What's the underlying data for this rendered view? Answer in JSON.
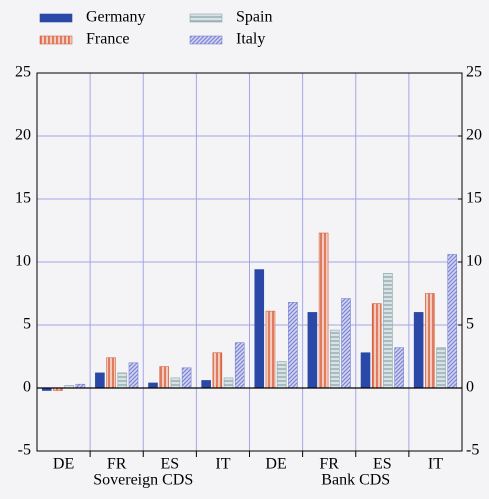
{
  "chart_data": {
    "type": "bar",
    "categories": [
      "DE",
      "FR",
      "ES",
      "IT",
      "DE",
      "FR",
      "ES",
      "IT"
    ],
    "category_groups": [
      "Sovereign CDS",
      "Bank CDS"
    ],
    "series": [
      {
        "name": "Germany",
        "color": "#2a48a8",
        "pattern": "solid",
        "values": [
          -0.2,
          1.2,
          0.4,
          0.6,
          9.4,
          6.0,
          2.8,
          6.0
        ]
      },
      {
        "name": "France",
        "color": "#d9623f",
        "pattern": "vertical",
        "values": [
          -0.2,
          2.4,
          1.7,
          2.8,
          6.1,
          12.3,
          6.7,
          7.5
        ]
      },
      {
        "name": "Spain",
        "color": "#8ea8ae",
        "pattern": "horizontal",
        "values": [
          0.2,
          1.2,
          0.8,
          0.8,
          2.1,
          4.6,
          9.1,
          3.2
        ]
      },
      {
        "name": "Italy",
        "color": "#7c84d4",
        "pattern": "diagonal",
        "values": [
          0.3,
          2.0,
          1.6,
          3.6,
          6.8,
          7.1,
          3.2,
          10.6
        ]
      }
    ],
    "ylim": [
      -5,
      25
    ],
    "yticks": [
      -5,
      0,
      5,
      10,
      15,
      20,
      25
    ],
    "y2lim": [
      -5,
      25
    ],
    "y2ticks": [
      -5,
      0,
      5,
      10,
      15,
      20,
      25
    ],
    "grid": true,
    "legend": "top-left"
  }
}
